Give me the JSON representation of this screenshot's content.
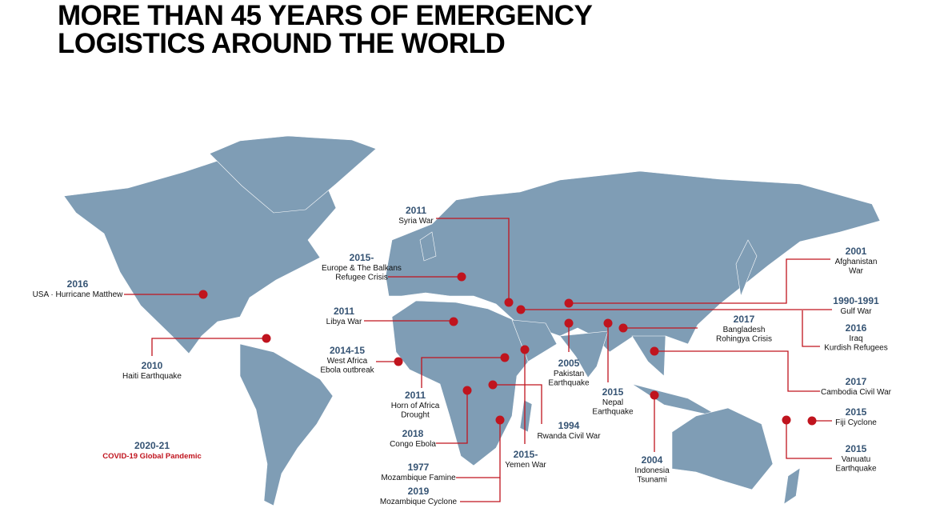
{
  "title": [
    "MORE THAN 45 YEARS OF EMERGENCY",
    "LOGISTICS AROUND THE WORLD"
  ],
  "events": [
    {
      "year": "2016",
      "label": [
        "USA · Hurricane Matthew"
      ]
    },
    {
      "year": "2010",
      "label": [
        "Haiti Earthquake"
      ]
    },
    {
      "year": "2020-21",
      "label": [
        "COVID-19 Global Pandemic"
      ]
    },
    {
      "year": "2015-",
      "label": [
        "Europe & The Balkans",
        "Refugee Crisis"
      ]
    },
    {
      "year": "2011",
      "label": [
        "Syria War"
      ]
    },
    {
      "year": "2011",
      "label": [
        "Libya War"
      ]
    },
    {
      "year": "2014-15",
      "label": [
        "West Africa",
        "Ebola outbreak"
      ]
    },
    {
      "year": "2011",
      "label": [
        "Horn of Africa",
        "Drought"
      ]
    },
    {
      "year": "2018",
      "label": [
        "Congo Ebola"
      ]
    },
    {
      "year": "1994",
      "label": [
        "Rwanda Civil War"
      ]
    },
    {
      "year": "2015-",
      "label": [
        "Yemen War"
      ]
    },
    {
      "year": "1977",
      "label": [
        "Mozambique Famine"
      ]
    },
    {
      "year": "2019",
      "label": [
        "Mozambique Cyclone"
      ]
    },
    {
      "year": "2005",
      "label": [
        "Pakistan",
        "Earthquake"
      ]
    },
    {
      "year": "2015",
      "label": [
        "Nepal",
        "Earthquake"
      ]
    },
    {
      "year": "2017",
      "label": [
        "Bangladesh",
        "Rohingya Crisis"
      ]
    },
    {
      "year": "2001",
      "label": [
        "Afghanistan",
        "War"
      ]
    },
    {
      "year": "1990-1991",
      "label": [
        "Gulf War"
      ]
    },
    {
      "year": "2016",
      "label": [
        "Iraq",
        "Kurdish Refugees"
      ]
    },
    {
      "year": "2017",
      "label": [
        "Cambodia Civil War"
      ]
    },
    {
      "year": "2004",
      "label": [
        "Indonesia",
        "Tsunami"
      ]
    },
    {
      "year": "2015",
      "label": [
        "Fiji Cyclone"
      ]
    },
    {
      "year": "2015",
      "label": [
        "Vanuatu",
        "Earthquake"
      ]
    }
  ]
}
